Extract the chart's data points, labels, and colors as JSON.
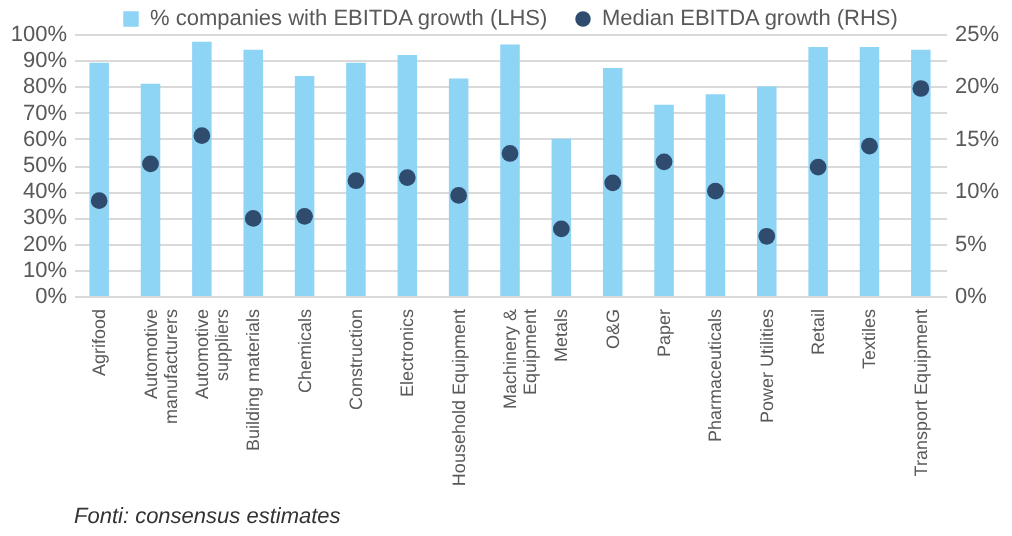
{
  "chart_data": {
    "type": "bar",
    "categories": [
      "Agrifood",
      "Automotive manufacturers",
      "Automotive suppliers",
      "Building materials",
      "Chemicals",
      "Construction",
      "Electronics",
      "Household Equipment",
      "Machinery & Equipment",
      "Metals",
      "O&G",
      "Paper",
      "Pharmaceuticals",
      "Power Utilities",
      "Retail",
      "Textiles",
      "Transport Equipment"
    ],
    "series": [
      {
        "name": "% companies with EBITDA  growth (LHS)",
        "color": "#8ed4f5",
        "values": [
          89,
          81,
          97,
          94,
          84,
          89,
          92,
          83,
          96,
          60,
          87,
          73,
          77,
          80,
          95,
          95,
          94
        ]
      },
      {
        "name": "Median EBITDA growth (RHS)",
        "type": "scatter",
        "axis": "y2",
        "color": "#2f4b6e",
        "values": [
          9.1,
          12.6,
          15.3,
          7.4,
          7.6,
          11.0,
          11.3,
          9.6,
          13.6,
          6.4,
          10.8,
          12.8,
          10.0,
          5.7,
          12.3,
          14.3,
          19.8
        ]
      }
    ],
    "ylim": [
      0,
      100
    ],
    "yticks": [
      {
        "value": 0,
        "label": "0%"
      },
      {
        "value": 10,
        "label": "10%"
      },
      {
        "value": 20,
        "label": "20%"
      },
      {
        "value": 30,
        "label": "30%"
      },
      {
        "value": 40,
        "label": "40%"
      },
      {
        "value": 50,
        "label": "50%"
      },
      {
        "value": 60,
        "label": "60%"
      },
      {
        "value": 70,
        "label": "70%"
      },
      {
        "value": 80,
        "label": "80%"
      },
      {
        "value": 90,
        "label": "90%"
      },
      {
        "value": 100,
        "label": "100%"
      }
    ],
    "y2lim": [
      0,
      25
    ],
    "y2ticks": [
      {
        "value": 0,
        "label": "0%"
      },
      {
        "value": 5,
        "label": "5%"
      },
      {
        "value": 10,
        "label": "10%"
      },
      {
        "value": 15,
        "label": "15%"
      },
      {
        "value": 20,
        "label": "20%"
      },
      {
        "value": 25,
        "label": "25%"
      }
    ],
    "grid": "y",
    "legend": "top",
    "marker": "circle",
    "annotations": [
      "Fonti: consensus estimates"
    ]
  }
}
